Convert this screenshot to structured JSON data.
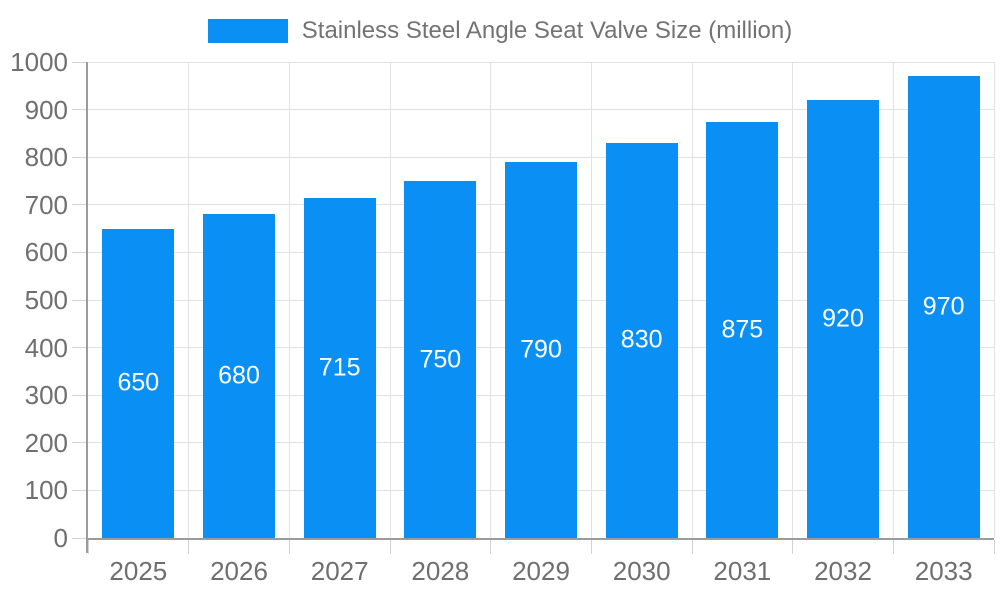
{
  "chart_data": {
    "type": "bar",
    "title": "Stainless Steel Angle Seat Valve Size (million)",
    "legend_entries": [
      "Stainless Steel Angle Seat Valve Size (million)"
    ],
    "legend_position": "top",
    "categories": [
      "2025",
      "2026",
      "2027",
      "2028",
      "2029",
      "2030",
      "2031",
      "2032",
      "2033"
    ],
    "series": [
      {
        "name": "Stainless Steel Angle Seat Valve Size (million)",
        "values": [
          650,
          680,
          715,
          750,
          790,
          830,
          875,
          920,
          970
        ]
      }
    ],
    "value_labels": [
      "650",
      "680",
      "715",
      "750",
      "790",
      "830",
      "875",
      "920",
      "970"
    ],
    "xlabel": "",
    "ylabel": "",
    "ylim": [
      0,
      1000
    ],
    "yticks": [
      0,
      100,
      200,
      300,
      400,
      500,
      600,
      700,
      800,
      900,
      1000
    ],
    "grid": true,
    "colors": {
      "bar": "#0a90f5",
      "grid": "#e2e2e2",
      "axis": "#9b9b9b",
      "tick": "#d2d2d2",
      "axis_text": "#6f6f6f",
      "legend_text": "#737373",
      "value_label_text": "#ffffff"
    }
  }
}
